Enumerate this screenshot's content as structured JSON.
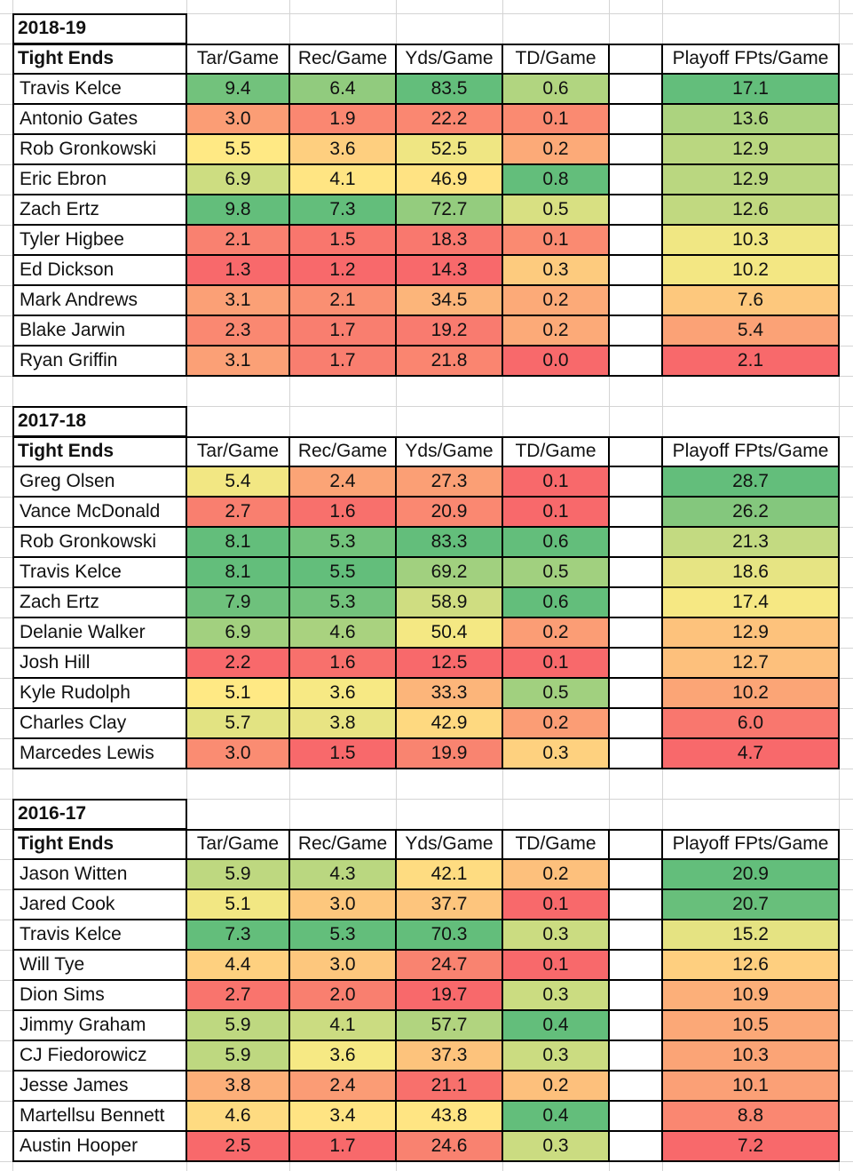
{
  "columns": [
    "Tar/Game",
    "Rec/Game",
    "Yds/Game",
    "TD/Game",
    "",
    "Playoff FPts/Game"
  ],
  "colors": {
    "green": "#63be7b",
    "yellow": "#ffeb84",
    "red": "#f8696b",
    "grid": "#d4d4d4",
    "border": "#000000"
  },
  "sections": [
    {
      "season": "2018-19",
      "position_label": "Tight Ends",
      "rows": [
        {
          "name": "Travis Kelce",
          "tar": "9.4",
          "rec": "6.4",
          "yds": "83.5",
          "td": "0.6",
          "fpts": "17.1"
        },
        {
          "name": "Antonio Gates",
          "tar": "3.0",
          "rec": "1.9",
          "yds": "22.2",
          "td": "0.1",
          "fpts": "13.6"
        },
        {
          "name": "Rob Gronkowski",
          "tar": "5.5",
          "rec": "3.6",
          "yds": "52.5",
          "td": "0.2",
          "fpts": "12.9"
        },
        {
          "name": "Eric Ebron",
          "tar": "6.9",
          "rec": "4.1",
          "yds": "46.9",
          "td": "0.8",
          "fpts": "12.9"
        },
        {
          "name": "Zach Ertz",
          "tar": "9.8",
          "rec": "7.3",
          "yds": "72.7",
          "td": "0.5",
          "fpts": "12.6"
        },
        {
          "name": "Tyler Higbee",
          "tar": "2.1",
          "rec": "1.5",
          "yds": "18.3",
          "td": "0.1",
          "fpts": "10.3"
        },
        {
          "name": "Ed Dickson",
          "tar": "1.3",
          "rec": "1.2",
          "yds": "14.3",
          "td": "0.3",
          "fpts": "10.2"
        },
        {
          "name": "Mark Andrews",
          "tar": "3.1",
          "rec": "2.1",
          "yds": "34.5",
          "td": "0.2",
          "fpts": "7.6"
        },
        {
          "name": "Blake Jarwin",
          "tar": "2.3",
          "rec": "1.7",
          "yds": "19.2",
          "td": "0.2",
          "fpts": "5.4"
        },
        {
          "name": "Ryan Griffin",
          "tar": "3.1",
          "rec": "1.7",
          "yds": "21.8",
          "td": "0.0",
          "fpts": "2.1"
        }
      ]
    },
    {
      "season": "2017-18",
      "position_label": "Tight Ends",
      "rows": [
        {
          "name": "Greg Olsen",
          "tar": "5.4",
          "rec": "2.4",
          "yds": "27.3",
          "td": "0.1",
          "fpts": "28.7"
        },
        {
          "name": "Vance McDonald",
          "tar": "2.7",
          "rec": "1.6",
          "yds": "20.9",
          "td": "0.1",
          "fpts": "26.2"
        },
        {
          "name": "Rob Gronkowski",
          "tar": "8.1",
          "rec": "5.3",
          "yds": "83.3",
          "td": "0.6",
          "fpts": "21.3"
        },
        {
          "name": "Travis Kelce",
          "tar": "8.1",
          "rec": "5.5",
          "yds": "69.2",
          "td": "0.5",
          "fpts": "18.6"
        },
        {
          "name": "Zach Ertz",
          "tar": "7.9",
          "rec": "5.3",
          "yds": "58.9",
          "td": "0.6",
          "fpts": "17.4"
        },
        {
          "name": "Delanie Walker",
          "tar": "6.9",
          "rec": "4.6",
          "yds": "50.4",
          "td": "0.2",
          "fpts": "12.9"
        },
        {
          "name": "Josh Hill",
          "tar": "2.2",
          "rec": "1.6",
          "yds": "12.5",
          "td": "0.1",
          "fpts": "12.7"
        },
        {
          "name": "Kyle Rudolph",
          "tar": "5.1",
          "rec": "3.6",
          "yds": "33.3",
          "td": "0.5",
          "fpts": "10.2"
        },
        {
          "name": "Charles Clay",
          "tar": "5.7",
          "rec": "3.8",
          "yds": "42.9",
          "td": "0.2",
          "fpts": "6.0"
        },
        {
          "name": "Marcedes Lewis",
          "tar": "3.0",
          "rec": "1.5",
          "yds": "19.9",
          "td": "0.3",
          "fpts": "4.7"
        }
      ]
    },
    {
      "season": "2016-17",
      "position_label": "Tight Ends",
      "rows": [
        {
          "name": "Jason Witten",
          "tar": "5.9",
          "rec": "4.3",
          "yds": "42.1",
          "td": "0.2",
          "fpts": "20.9"
        },
        {
          "name": "Jared Cook",
          "tar": "5.1",
          "rec": "3.0",
          "yds": "37.7",
          "td": "0.1",
          "fpts": "20.7"
        },
        {
          "name": "Travis Kelce",
          "tar": "7.3",
          "rec": "5.3",
          "yds": "70.3",
          "td": "0.3",
          "fpts": "15.2"
        },
        {
          "name": "Will Tye",
          "tar": "4.4",
          "rec": "3.0",
          "yds": "24.7",
          "td": "0.1",
          "fpts": "12.6"
        },
        {
          "name": "Dion Sims",
          "tar": "2.7",
          "rec": "2.0",
          "yds": "19.7",
          "td": "0.3",
          "fpts": "10.9"
        },
        {
          "name": "Jimmy Graham",
          "tar": "5.9",
          "rec": "4.1",
          "yds": "57.7",
          "td": "0.4",
          "fpts": "10.5"
        },
        {
          "name": "CJ Fiedorowicz",
          "tar": "5.9",
          "rec": "3.6",
          "yds": "37.3",
          "td": "0.3",
          "fpts": "10.3"
        },
        {
          "name": "Jesse James",
          "tar": "3.8",
          "rec": "2.4",
          "yds": "21.1",
          "td": "0.2",
          "fpts": "10.1"
        },
        {
          "name": "Martellsu Bennett",
          "tar": "4.6",
          "rec": "3.4",
          "yds": "43.8",
          "td": "0.4",
          "fpts": "8.8"
        },
        {
          "name": "Austin Hooper",
          "tar": "2.5",
          "rec": "1.7",
          "yds": "24.6",
          "td": "0.3",
          "fpts": "7.2"
        }
      ]
    }
  ]
}
